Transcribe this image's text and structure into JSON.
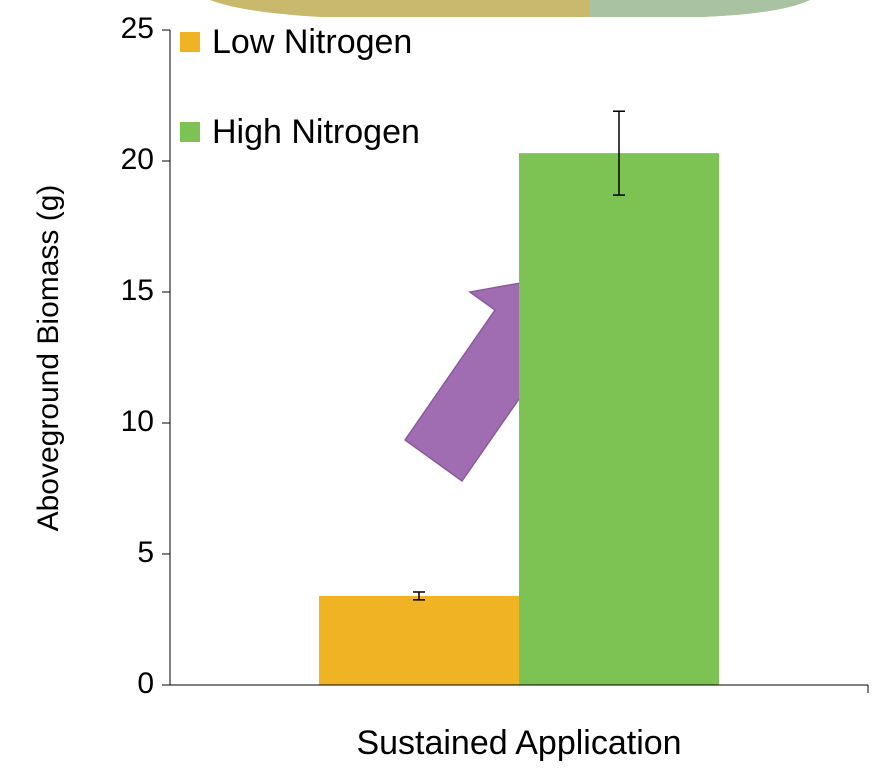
{
  "chart_data": {
    "type": "bar",
    "y_label": "Aboveground Biomass (g)",
    "categories": [
      "Sustained Application"
    ],
    "series": [
      {
        "name": "Low Nitrogen",
        "color": "#f0b323",
        "values": [
          3.4
        ],
        "errors": [
          0.15
        ]
      },
      {
        "name": "High Nitrogen",
        "color": "#7dc353",
        "values": [
          20.3
        ],
        "errors": [
          1.6
        ]
      }
    ],
    "ylim": [
      0,
      25
    ],
    "yticks": [
      0,
      5,
      10,
      15,
      20,
      25
    ],
    "grid": false,
    "legend": "top-left"
  }
}
